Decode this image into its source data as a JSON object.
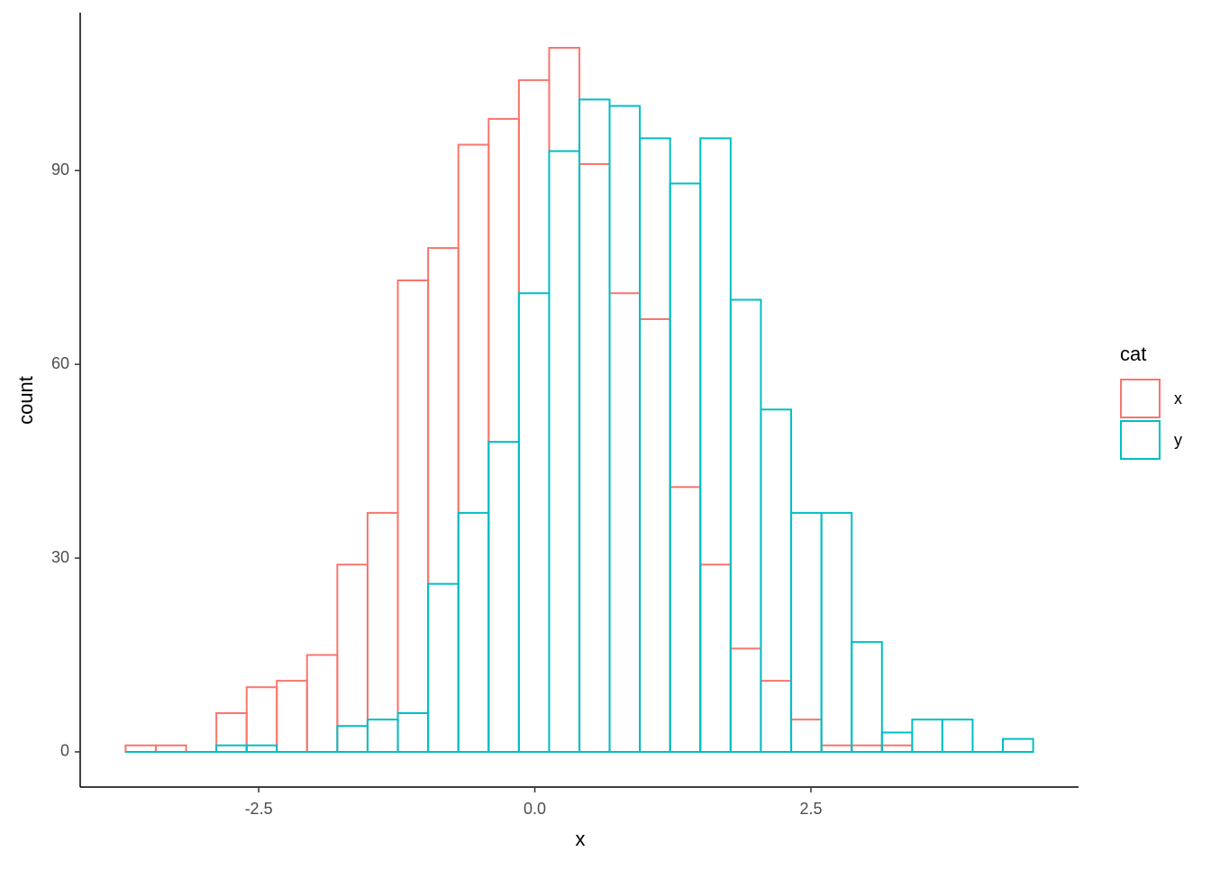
{
  "chart_data": {
    "type": "histogram",
    "x_label": "x",
    "y_label": "count",
    "bins": [
      -3.705,
      -3.431,
      -3.157,
      -2.883,
      -2.609,
      -2.336,
      -2.062,
      -1.788,
      -1.514,
      -1.24,
      -0.966,
      -0.692,
      -0.418,
      -0.144,
      0.13,
      0.404,
      0.677,
      0.951,
      1.225,
      1.499,
      1.773,
      2.047,
      2.321,
      2.595,
      2.869,
      3.143,
      3.417,
      3.69,
      3.964,
      4.238,
      4.512
    ],
    "series": [
      {
        "name": "x",
        "color": "#f8766d",
        "values": [
          1,
          1,
          0,
          6,
          10,
          11,
          15,
          29,
          37,
          73,
          78,
          94,
          98,
          104,
          109,
          91,
          71,
          67,
          41,
          29,
          16,
          11,
          5,
          1,
          1,
          1,
          0,
          0,
          0,
          0
        ]
      },
      {
        "name": "y",
        "color": "#00bfc4",
        "values": [
          0,
          0,
          0,
          1,
          1,
          0,
          0,
          4,
          5,
          6,
          26,
          37,
          48,
          71,
          93,
          101,
          100,
          95,
          88,
          95,
          70,
          53,
          37,
          37,
          17,
          3,
          5,
          5,
          0,
          2
        ]
      }
    ],
    "legend_title": "cat",
    "xlim": [
      -4.116,
      4.923
    ],
    "xticks": [
      -2.5,
      {
        "value": 0,
        "label": "0.0"
      },
      2.5
    ],
    "ylim": [
      -5.45,
      114.45
    ],
    "yticks": [
      0,
      30,
      60,
      90
    ],
    "grid": false,
    "legend_position": "right"
  }
}
